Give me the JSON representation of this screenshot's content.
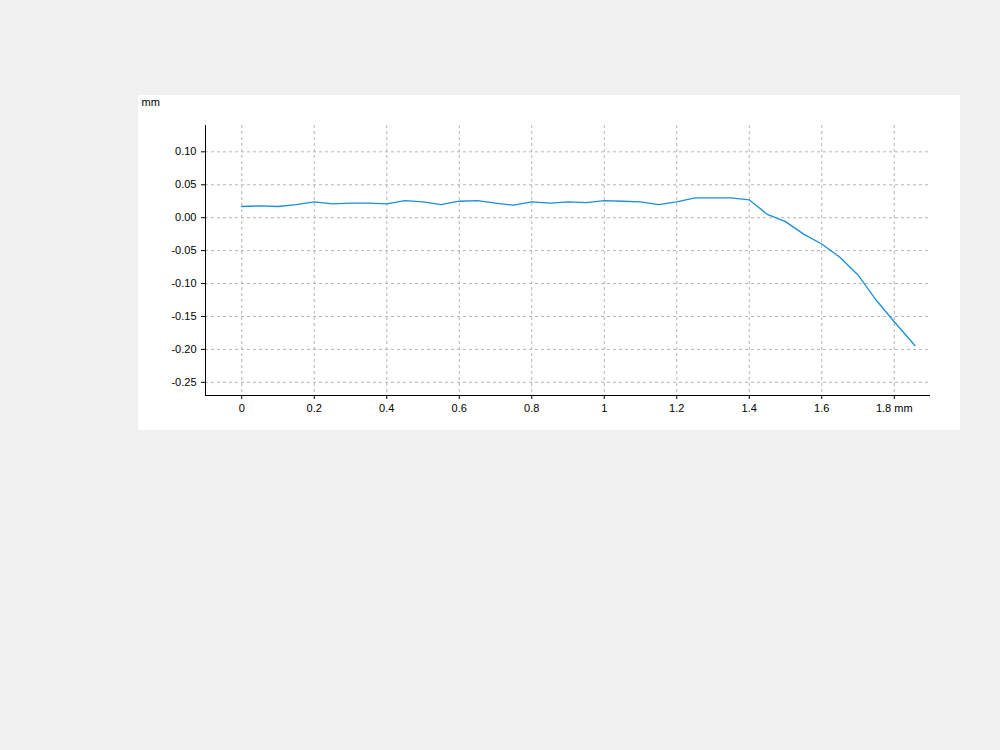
{
  "chart_data": {
    "type": "line",
    "ylabel": "mm",
    "x": [
      0,
      0.05,
      0.1,
      0.15,
      0.2,
      0.25,
      0.3,
      0.35,
      0.4,
      0.45,
      0.5,
      0.55,
      0.6,
      0.65,
      0.7,
      0.75,
      0.8,
      0.85,
      0.9,
      0.95,
      1.0,
      1.05,
      1.1,
      1.15,
      1.2,
      1.25,
      1.3,
      1.35,
      1.4,
      1.45,
      1.5,
      1.55,
      1.6,
      1.65,
      1.7,
      1.75,
      1.8,
      1.857
    ],
    "values": [
      0.017,
      0.018,
      0.017,
      0.02,
      0.024,
      0.021,
      0.022,
      0.022,
      0.021,
      0.026,
      0.024,
      0.02,
      0.025,
      0.026,
      0.022,
      0.019,
      0.024,
      0.022,
      0.024,
      0.023,
      0.026,
      0.025,
      0.024,
      0.02,
      0.024,
      0.03,
      0.03,
      0.03,
      0.027,
      0.005,
      -0.006,
      -0.025,
      -0.04,
      -0.06,
      -0.087,
      -0.125,
      -0.158,
      -0.194
    ],
    "color": "#1a8fd6",
    "xlim": [
      -0.1,
      1.9
    ],
    "ylim": [
      -0.27,
      0.14
    ],
    "xticks": [
      0,
      0.2,
      0.4,
      0.6,
      0.8,
      1,
      1.2,
      1.4,
      1.6,
      {
        "value": 1.8,
        "label": "1.8 mm"
      }
    ],
    "yticks": [
      {
        "value": 0.1,
        "label": "0.10"
      },
      {
        "value": 0.05,
        "label": "0.05"
      },
      {
        "value": 0,
        "label": "0.00"
      },
      {
        "value": -0.05,
        "label": "-0.05"
      },
      {
        "value": -0.1,
        "label": "-0.10"
      },
      {
        "value": -0.15,
        "label": "-0.15"
      },
      {
        "value": -0.2,
        "label": "-0.20"
      },
      {
        "value": -0.25,
        "label": "-0.25"
      }
    ],
    "grid": true
  }
}
